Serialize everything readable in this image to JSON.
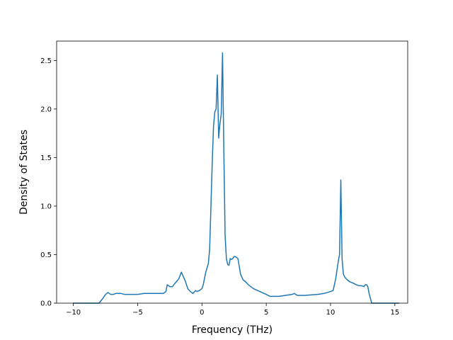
{
  "chart_data": {
    "type": "line",
    "title": "",
    "xlabel": "Frequency (THz)",
    "ylabel": "Density of States",
    "xlim": [
      -11.3,
      16.0
    ],
    "ylim": [
      0.0,
      2.7
    ],
    "grid": false,
    "legend": "none",
    "line_color": "#1f77b4",
    "x_ticks": [
      {
        "value": -10,
        "label": "−10"
      },
      {
        "value": -5,
        "label": "−5"
      },
      {
        "value": 0,
        "label": "0"
      },
      {
        "value": 5,
        "label": "5"
      },
      {
        "value": 10,
        "label": "10"
      },
      {
        "value": 15,
        "label": "15"
      }
    ],
    "y_ticks": [
      {
        "value": 0.0,
        "label": "0.0"
      },
      {
        "value": 0.5,
        "label": "0.5"
      },
      {
        "value": 1.0,
        "label": "1.0"
      },
      {
        "value": 1.5,
        "label": "1.5"
      },
      {
        "value": 2.0,
        "label": "2.0"
      },
      {
        "value": 2.5,
        "label": "2.5"
      }
    ],
    "series": [
      {
        "x": [
          -10.0,
          -9.0,
          -8.0,
          -7.7,
          -7.5,
          -7.3,
          -7.1,
          -6.9,
          -6.7,
          -6.5,
          -6.3,
          -6.0,
          -5.5,
          -5.0,
          -4.5,
          -4.0,
          -3.5,
          -3.0,
          -2.8,
          -2.7,
          -2.5,
          -2.3,
          -2.0,
          -1.8,
          -1.6,
          -1.5,
          -1.3,
          -1.1,
          -0.9,
          -0.7,
          -0.5,
          -0.4,
          -0.2,
          0.0,
          0.1,
          0.3,
          0.5,
          0.6,
          0.7,
          0.8,
          0.9,
          1.0,
          1.1,
          1.2,
          1.3,
          1.4,
          1.5,
          1.6,
          1.7,
          1.8,
          1.9,
          2.0,
          2.1,
          2.2,
          2.3,
          2.4,
          2.5,
          2.6,
          2.8,
          3.0,
          3.2,
          3.4,
          3.6,
          3.8,
          4.0,
          4.5,
          5.0,
          5.3,
          5.5,
          5.7,
          6.0,
          6.5,
          7.0,
          7.2,
          7.4,
          7.6,
          8.0,
          9.0,
          9.5,
          10.0,
          10.2,
          10.4,
          10.6,
          10.7,
          10.8,
          10.9,
          11.0,
          11.1,
          11.3,
          11.5,
          11.7,
          12.0,
          12.2,
          12.4,
          12.6,
          12.7,
          12.8,
          12.9,
          13.0,
          13.1,
          13.2,
          13.3,
          13.5,
          14.0,
          15.0,
          15.3
        ],
        "y": [
          0.0,
          0.0,
          0.0,
          0.05,
          0.09,
          0.11,
          0.09,
          0.09,
          0.1,
          0.1,
          0.1,
          0.09,
          0.09,
          0.09,
          0.1,
          0.1,
          0.1,
          0.1,
          0.12,
          0.19,
          0.17,
          0.17,
          0.22,
          0.25,
          0.32,
          0.29,
          0.23,
          0.15,
          0.12,
          0.1,
          0.13,
          0.12,
          0.13,
          0.15,
          0.19,
          0.32,
          0.41,
          0.56,
          1.0,
          1.45,
          1.82,
          1.97,
          2.0,
          2.35,
          1.7,
          1.85,
          1.95,
          2.58,
          1.6,
          0.7,
          0.46,
          0.4,
          0.39,
          0.46,
          0.45,
          0.46,
          0.48,
          0.48,
          0.46,
          0.3,
          0.24,
          0.22,
          0.19,
          0.17,
          0.15,
          0.12,
          0.09,
          0.07,
          0.07,
          0.07,
          0.07,
          0.08,
          0.09,
          0.1,
          0.08,
          0.08,
          0.08,
          0.09,
          0.1,
          0.12,
          0.13,
          0.25,
          0.43,
          0.5,
          1.27,
          0.45,
          0.3,
          0.27,
          0.24,
          0.22,
          0.21,
          0.19,
          0.18,
          0.18,
          0.17,
          0.19,
          0.19,
          0.17,
          0.1,
          0.05,
          0.0,
          0.0,
          0.0,
          0.0,
          0.0,
          0.0
        ]
      }
    ]
  }
}
